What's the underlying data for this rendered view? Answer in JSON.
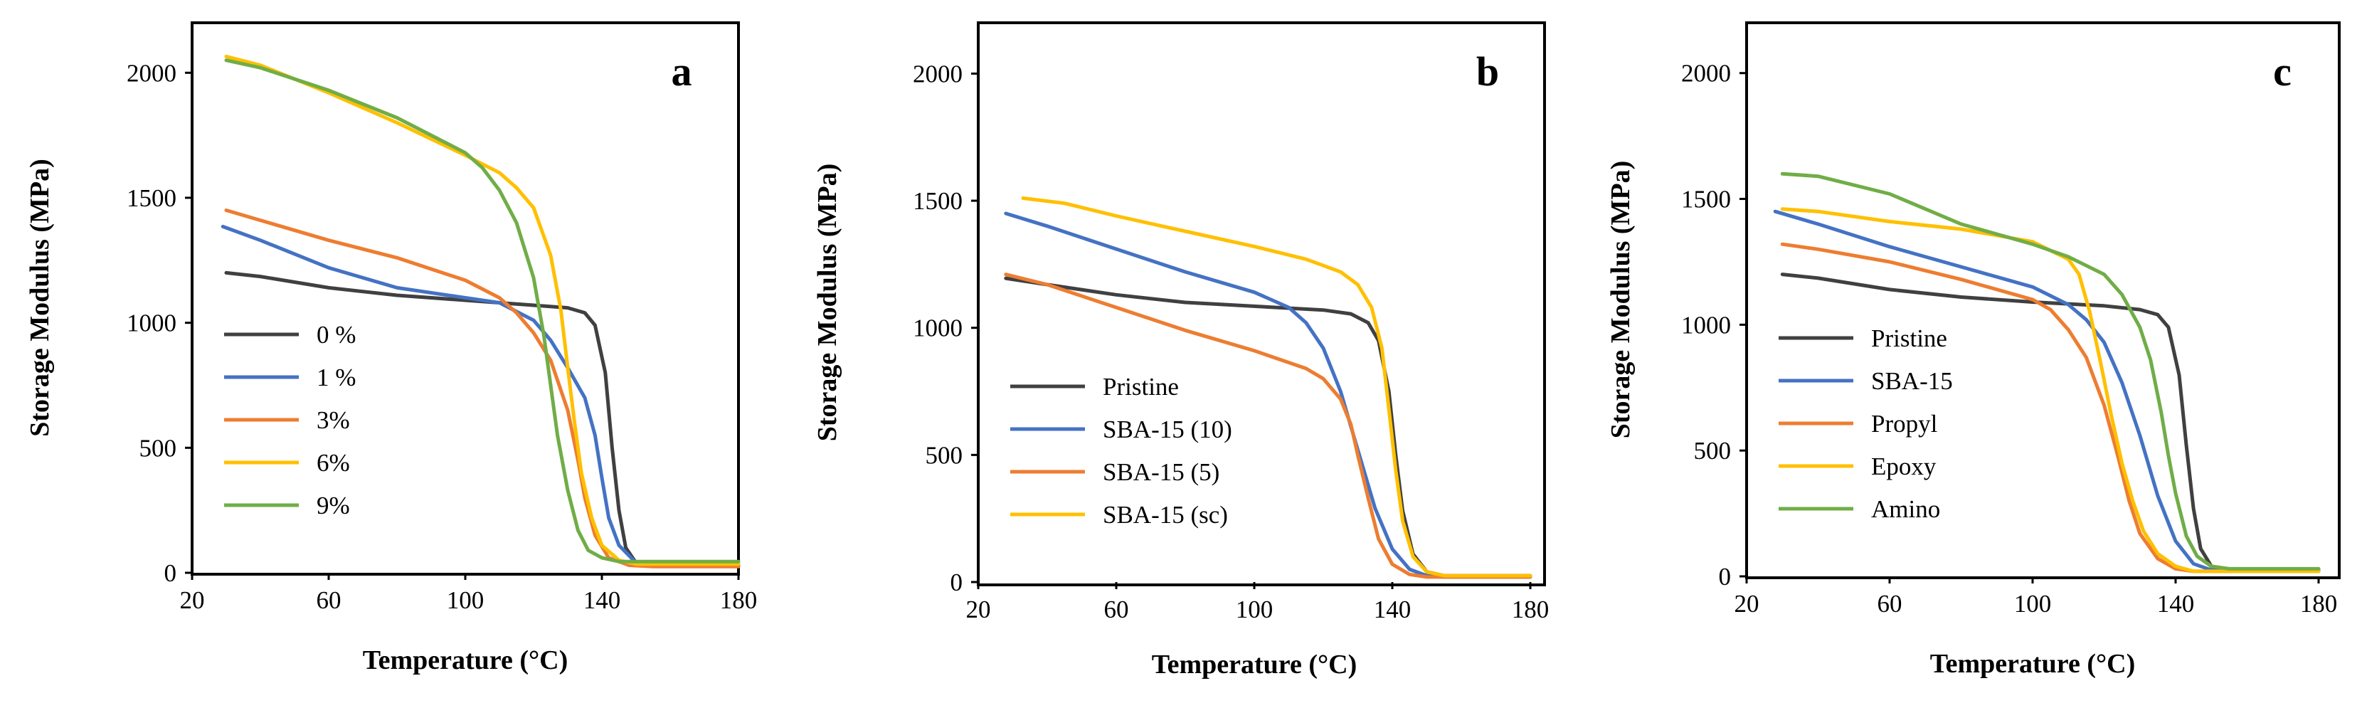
{
  "colors": {
    "gray": "#404040",
    "blue": "#4472C4",
    "orange": "#ED7D31",
    "yellow": "#FFC000",
    "green": "#70AD47"
  },
  "chart_data": [
    {
      "type": "line",
      "panel_label": "a",
      "xlabel": "Temperature (°C)",
      "ylabel": "Storage Modulus (MPa)",
      "xlim": [
        20,
        180
      ],
      "ylim": [
        0,
        2200
      ],
      "xticks": [
        20,
        60,
        100,
        140,
        180
      ],
      "yticks": [
        0,
        500,
        1000,
        1500,
        2000
      ],
      "legend_position": "bottom-left",
      "series": [
        {
          "name": "0 %",
          "color": "#404040",
          "points": [
            [
              30,
              1200
            ],
            [
              40,
              1185
            ],
            [
              60,
              1140
            ],
            [
              80,
              1110
            ],
            [
              100,
              1090
            ],
            [
              120,
              1070
            ],
            [
              130,
              1060
            ],
            [
              135,
              1040
            ],
            [
              138,
              990
            ],
            [
              141,
              800
            ],
            [
              143,
              500
            ],
            [
              145,
              250
            ],
            [
              147,
              100
            ],
            [
              150,
              40
            ],
            [
              155,
              30
            ],
            [
              180,
              30
            ]
          ]
        },
        {
          "name": "1 %",
          "color": "#4472C4",
          "points": [
            [
              29,
              1385
            ],
            [
              40,
              1330
            ],
            [
              60,
              1220
            ],
            [
              80,
              1140
            ],
            [
              100,
              1100
            ],
            [
              110,
              1080
            ],
            [
              120,
              1010
            ],
            [
              125,
              930
            ],
            [
              130,
              820
            ],
            [
              135,
              700
            ],
            [
              138,
              550
            ],
            [
              140,
              380
            ],
            [
              142,
              220
            ],
            [
              145,
              110
            ],
            [
              150,
              40
            ],
            [
              155,
              30
            ],
            [
              180,
              30
            ]
          ]
        },
        {
          "name": "3%",
          "color": "#ED7D31",
          "points": [
            [
              30,
              1450
            ],
            [
              40,
              1410
            ],
            [
              60,
              1330
            ],
            [
              80,
              1260
            ],
            [
              100,
              1170
            ],
            [
              110,
              1100
            ],
            [
              115,
              1040
            ],
            [
              120,
              960
            ],
            [
              125,
              850
            ],
            [
              130,
              650
            ],
            [
              133,
              450
            ],
            [
              135,
              300
            ],
            [
              138,
              150
            ],
            [
              142,
              60
            ],
            [
              148,
              30
            ],
            [
              155,
              25
            ],
            [
              180,
              25
            ]
          ]
        },
        {
          "name": "6%",
          "color": "#FFC000",
          "points": [
            [
              30,
              2065
            ],
            [
              40,
              2030
            ],
            [
              60,
              1920
            ],
            [
              80,
              1800
            ],
            [
              100,
              1670
            ],
            [
              110,
              1600
            ],
            [
              115,
              1540
            ],
            [
              120,
              1460
            ],
            [
              125,
              1270
            ],
            [
              128,
              1050
            ],
            [
              130,
              820
            ],
            [
              132,
              600
            ],
            [
              134,
              400
            ],
            [
              137,
              220
            ],
            [
              140,
              110
            ],
            [
              145,
              50
            ],
            [
              150,
              35
            ],
            [
              180,
              35
            ]
          ]
        },
        {
          "name": "9%",
          "color": "#70AD47",
          "points": [
            [
              30,
              2050
            ],
            [
              40,
              2020
            ],
            [
              60,
              1930
            ],
            [
              80,
              1820
            ],
            [
              100,
              1680
            ],
            [
              105,
              1620
            ],
            [
              110,
              1530
            ],
            [
              115,
              1400
            ],
            [
              120,
              1180
            ],
            [
              123,
              950
            ],
            [
              125,
              750
            ],
            [
              127,
              550
            ],
            [
              130,
              330
            ],
            [
              133,
              170
            ],
            [
              136,
              90
            ],
            [
              140,
              60
            ],
            [
              145,
              45
            ],
            [
              150,
              45
            ],
            [
              180,
              45
            ]
          ]
        }
      ]
    },
    {
      "type": "line",
      "panel_label": "b",
      "xlabel": "Temperature (°C)",
      "ylabel": "Storage Modulus (MPa)",
      "xlim": [
        20,
        180
      ],
      "ylim": [
        0,
        2200
      ],
      "xticks": [
        20,
        60,
        100,
        140,
        180
      ],
      "yticks": [
        0,
        500,
        1000,
        1500,
        2000
      ],
      "legend_position": "bottom-left",
      "series": [
        {
          "name": "Pristine",
          "color": "#404040",
          "points": [
            [
              28,
              1195
            ],
            [
              40,
              1170
            ],
            [
              60,
              1130
            ],
            [
              80,
              1100
            ],
            [
              100,
              1085
            ],
            [
              120,
              1070
            ],
            [
              128,
              1055
            ],
            [
              133,
              1020
            ],
            [
              136,
              950
            ],
            [
              139,
              750
            ],
            [
              141,
              500
            ],
            [
              143,
              280
            ],
            [
              146,
              110
            ],
            [
              150,
              40
            ],
            [
              155,
              25
            ],
            [
              180,
              25
            ]
          ]
        },
        {
          "name": "SBA-15 (10)",
          "color": "#4472C4",
          "points": [
            [
              28,
              1450
            ],
            [
              40,
              1400
            ],
            [
              60,
              1310
            ],
            [
              80,
              1220
            ],
            [
              100,
              1140
            ],
            [
              110,
              1080
            ],
            [
              115,
              1020
            ],
            [
              120,
              920
            ],
            [
              125,
              750
            ],
            [
              130,
              520
            ],
            [
              135,
              290
            ],
            [
              140,
              130
            ],
            [
              145,
              50
            ],
            [
              150,
              25
            ],
            [
              155,
              20
            ],
            [
              180,
              20
            ]
          ]
        },
        {
          "name": "SBA-15 (5)",
          "color": "#ED7D31",
          "points": [
            [
              28,
              1210
            ],
            [
              40,
              1170
            ],
            [
              60,
              1080
            ],
            [
              80,
              990
            ],
            [
              100,
              910
            ],
            [
              115,
              840
            ],
            [
              120,
              800
            ],
            [
              125,
              720
            ],
            [
              128,
              620
            ],
            [
              130,
              500
            ],
            [
              133,
              330
            ],
            [
              136,
              170
            ],
            [
              140,
              70
            ],
            [
              145,
              30
            ],
            [
              150,
              20
            ],
            [
              180,
              20
            ]
          ]
        },
        {
          "name": "SBA-15 (sc)",
          "color": "#FFC000",
          "points": [
            [
              33,
              1510
            ],
            [
              45,
              1490
            ],
            [
              60,
              1440
            ],
            [
              80,
              1380
            ],
            [
              100,
              1320
            ],
            [
              115,
              1270
            ],
            [
              125,
              1220
            ],
            [
              130,
              1170
            ],
            [
              134,
              1080
            ],
            [
              137,
              920
            ],
            [
              139,
              680
            ],
            [
              141,
              440
            ],
            [
              143,
              240
            ],
            [
              146,
              100
            ],
            [
              150,
              40
            ],
            [
              155,
              25
            ],
            [
              180,
              25
            ]
          ]
        }
      ]
    },
    {
      "type": "line",
      "panel_label": "c",
      "xlabel": "Temperature (°C)",
      "ylabel": "Storage Modulus (MPa)",
      "xlim": [
        20,
        180
      ],
      "ylim": [
        0,
        2200
      ],
      "xticks": [
        20,
        60,
        100,
        140,
        180
      ],
      "yticks": [
        0,
        500,
        1000,
        1500,
        2000
      ],
      "legend_position": "bottom-left",
      "series": [
        {
          "name": "Pristine",
          "color": "#404040",
          "points": [
            [
              30,
              1200
            ],
            [
              40,
              1185
            ],
            [
              60,
              1140
            ],
            [
              80,
              1110
            ],
            [
              100,
              1090
            ],
            [
              120,
              1075
            ],
            [
              130,
              1060
            ],
            [
              135,
              1040
            ],
            [
              138,
              990
            ],
            [
              141,
              800
            ],
            [
              143,
              520
            ],
            [
              145,
              270
            ],
            [
              147,
              110
            ],
            [
              150,
              40
            ],
            [
              155,
              25
            ],
            [
              180,
              25
            ]
          ]
        },
        {
          "name": "SBA-15",
          "color": "#4472C4",
          "points": [
            [
              28,
              1450
            ],
            [
              40,
              1400
            ],
            [
              60,
              1310
            ],
            [
              80,
              1230
            ],
            [
              100,
              1150
            ],
            [
              110,
              1080
            ],
            [
              115,
              1020
            ],
            [
              120,
              930
            ],
            [
              125,
              770
            ],
            [
              130,
              560
            ],
            [
              135,
              320
            ],
            [
              140,
              140
            ],
            [
              145,
              50
            ],
            [
              150,
              25
            ],
            [
              180,
              25
            ]
          ]
        },
        {
          "name": "Propyl",
          "color": "#ED7D31",
          "points": [
            [
              30,
              1320
            ],
            [
              40,
              1300
            ],
            [
              60,
              1250
            ],
            [
              80,
              1180
            ],
            [
              100,
              1100
            ],
            [
              105,
              1060
            ],
            [
              110,
              980
            ],
            [
              115,
              870
            ],
            [
              120,
              680
            ],
            [
              124,
              470
            ],
            [
              127,
              300
            ],
            [
              130,
              170
            ],
            [
              135,
              70
            ],
            [
              140,
              30
            ],
            [
              145,
              20
            ],
            [
              180,
              20
            ]
          ]
        },
        {
          "name": "Epoxy",
          "color": "#FFC000",
          "points": [
            [
              30,
              1460
            ],
            [
              40,
              1450
            ],
            [
              60,
              1410
            ],
            [
              80,
              1380
            ],
            [
              100,
              1330
            ],
            [
              110,
              1260
            ],
            [
              113,
              1200
            ],
            [
              116,
              1050
            ],
            [
              119,
              850
            ],
            [
              122,
              640
            ],
            [
              125,
              450
            ],
            [
              128,
              300
            ],
            [
              131,
              180
            ],
            [
              135,
              90
            ],
            [
              140,
              40
            ],
            [
              145,
              20
            ],
            [
              180,
              20
            ]
          ]
        },
        {
          "name": "Amino",
          "color": "#70AD47",
          "points": [
            [
              30,
              1600
            ],
            [
              40,
              1590
            ],
            [
              60,
              1520
            ],
            [
              70,
              1460
            ],
            [
              80,
              1400
            ],
            [
              100,
              1320
            ],
            [
              110,
              1270
            ],
            [
              120,
              1200
            ],
            [
              125,
              1120
            ],
            [
              130,
              990
            ],
            [
              133,
              860
            ],
            [
              136,
              650
            ],
            [
              138,
              480
            ],
            [
              140,
              330
            ],
            [
              143,
              160
            ],
            [
              146,
              80
            ],
            [
              150,
              40
            ],
            [
              155,
              30
            ],
            [
              180,
              30
            ]
          ]
        }
      ]
    }
  ]
}
